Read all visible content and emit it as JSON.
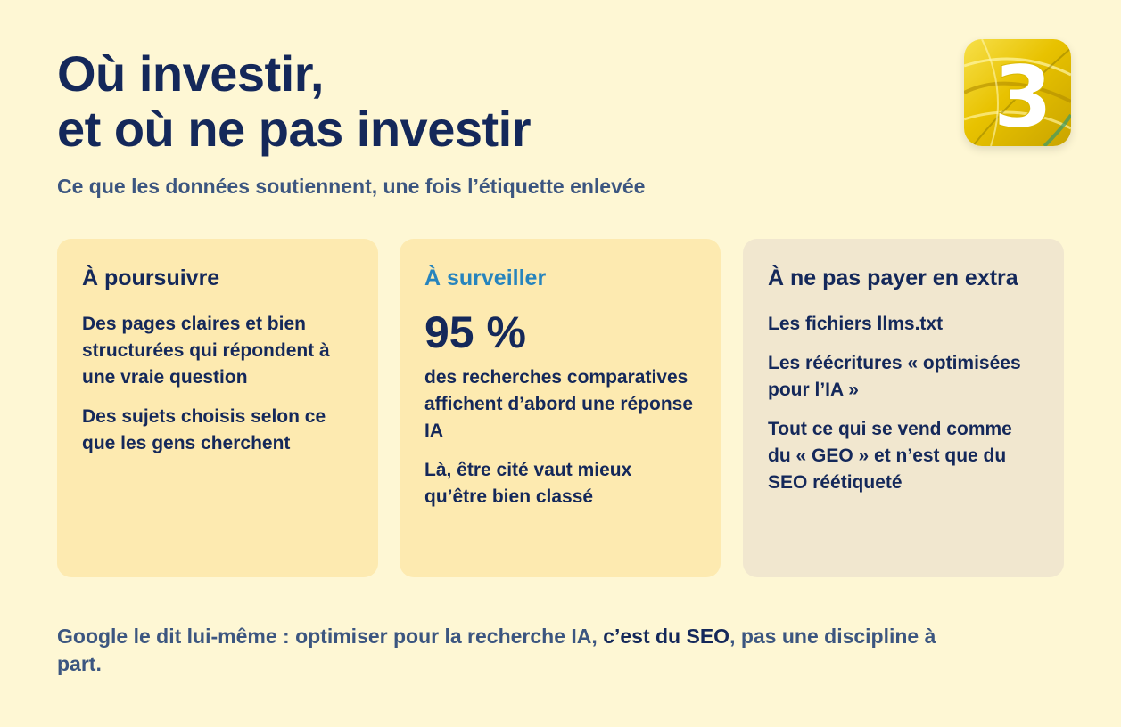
{
  "header": {
    "title_line1": "Où investir,",
    "title_line2": "et où ne pas investir",
    "subtitle": "Ce que les données soutiennent, une fois l’étiquette enlevée"
  },
  "logo": {
    "text": "3",
    "icon": "brand-3-logo-icon"
  },
  "cards": [
    {
      "title": "À poursuivre",
      "items": [
        "Des pages claires et bien structurées qui répondent à une vraie question",
        "Des sujets choisis selon ce que les gens cherchent"
      ]
    },
    {
      "title": "À surveiller",
      "stat": "95 %",
      "items": [
        "des recherches comparatives affichent d’abord une réponse IA",
        "Là, être cité vaut mieux qu’être bien classé"
      ]
    },
    {
      "title": "À ne pas payer en extra",
      "items": [
        "Les fichiers llms.txt",
        "Les réécritures « optimisées pour l’IA »",
        "Tout ce qui se vend comme du « GEO » et n’est que du SEO réétiqueté"
      ]
    }
  ],
  "footer": {
    "before": "Google le dit lui-même : optimiser pour la recherche IA, ",
    "emphasis": "c’est du SEO",
    "after": ", pas une discipline à part."
  },
  "colors": {
    "background": "#fef7d4",
    "navy": "#14285a",
    "accent_blue": "#2784bd",
    "card_yellow": "#fdeab0",
    "card_beige": "#f1e7cf"
  }
}
